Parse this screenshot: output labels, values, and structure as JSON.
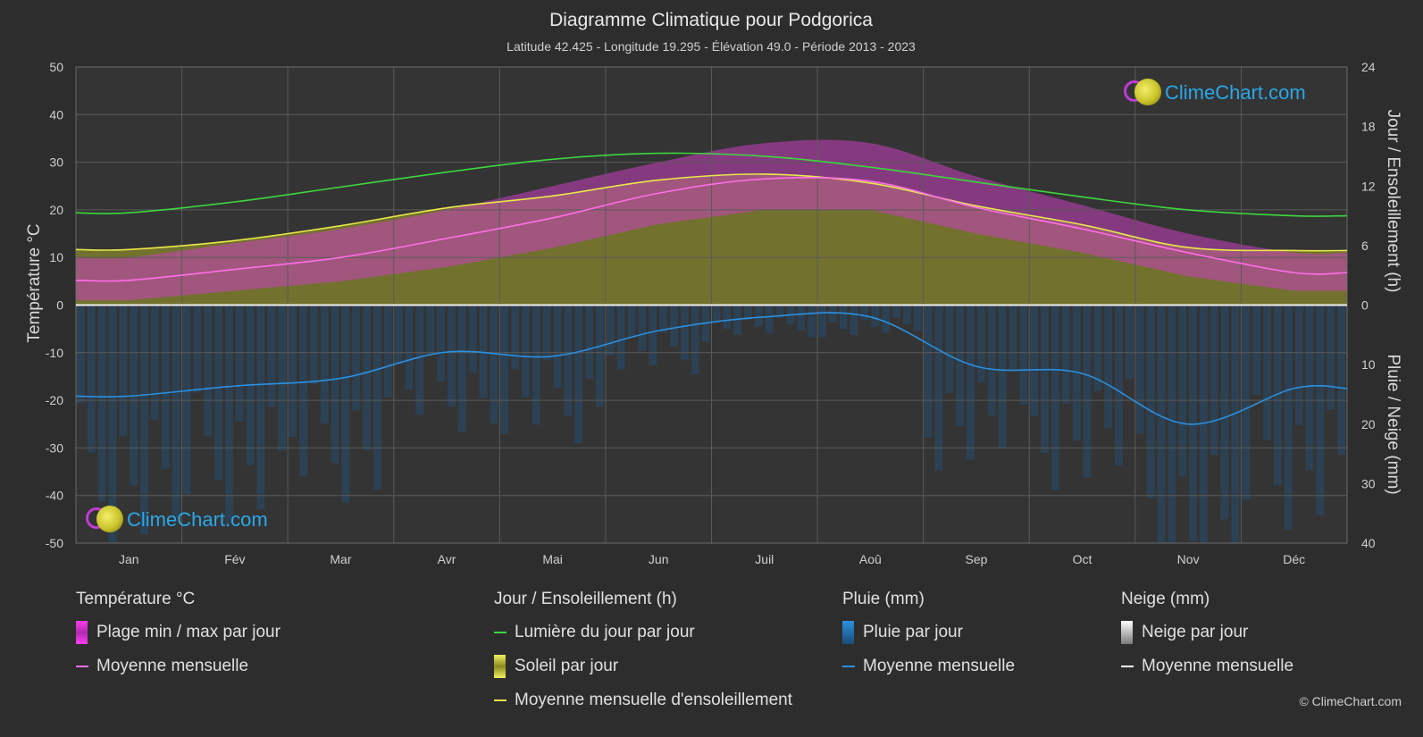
{
  "title": "Diagramme Climatique pour Podgorica",
  "subtitle": "Latitude 42.425 - Longitude 19.295 - Élévation 49.0 - Période 2013 - 2023",
  "brand": "ClimeChart.com",
  "copyright": "© ClimeChart.com",
  "colors": {
    "background": "#2d2d2d",
    "daylight": "#3ed63e",
    "sunshine_mean": "#e8e84a",
    "temp_mean": "#ff6ee8",
    "temp_range": "#d63fd0",
    "rain": "#2a90e0",
    "snow": "#ffffff",
    "brand": "#2aa7e8"
  },
  "chart_data": {
    "type": "line",
    "categories": [
      "Jan",
      "Fév",
      "Mar",
      "Avr",
      "Mai",
      "Jun",
      "Juil",
      "Aoû",
      "Sep",
      "Oct",
      "Nov",
      "Déc"
    ],
    "y_left": {
      "label": "Température °C",
      "range": [
        -50,
        50
      ],
      "ticks": [
        50,
        40,
        30,
        20,
        10,
        0,
        -10,
        -20,
        -30,
        -40,
        -50
      ]
    },
    "y_right_top": {
      "label": "Jour / Ensoleillement (h)",
      "range": [
        0,
        24
      ],
      "ticks": [
        24,
        18,
        12,
        6,
        0
      ]
    },
    "y_right_bottom": {
      "label": "Pluie / Neige (mm)",
      "range": [
        0,
        40
      ],
      "ticks": [
        0,
        10,
        20,
        30,
        40
      ]
    },
    "grid": true,
    "series": [
      {
        "name": "Lumière du jour par jour",
        "unit": "h",
        "values": [
          9.3,
          10.4,
          11.9,
          13.4,
          14.7,
          15.3,
          15.0,
          13.9,
          12.4,
          10.9,
          9.6,
          9.0
        ]
      },
      {
        "name": "Moyenne mensuelle d'ensoleillement",
        "unit": "h",
        "values": [
          5.6,
          6.5,
          8.0,
          9.8,
          11.0,
          12.6,
          13.2,
          12.3,
          10.0,
          8.1,
          5.8,
          5.5
        ]
      },
      {
        "name": "Moyenne mensuelle",
        "group": "Température °C",
        "unit": "°C",
        "values": [
          5.2,
          7.5,
          10.0,
          14.0,
          18.3,
          23.5,
          26.5,
          26.0,
          20.5,
          16.0,
          11.0,
          6.8
        ]
      },
      {
        "name": "Moyenne mensuelle",
        "group": "Pluie (mm)",
        "unit": "mm",
        "values": [
          15.3,
          13.6,
          12.3,
          7.9,
          8.6,
          4.3,
          2.0,
          2.0,
          10.3,
          11.5,
          20.0,
          14.0
        ]
      }
    ],
    "temp_range": {
      "min": [
        1,
        3,
        5,
        8,
        12,
        17,
        20,
        20,
        15,
        11,
        6,
        3
      ],
      "max": [
        10,
        13,
        16,
        20,
        25,
        30,
        34,
        34,
        27,
        21,
        15,
        11
      ]
    }
  },
  "legend": {
    "temperature": {
      "title": "Température °C",
      "items": [
        "Plage min / max par jour",
        "Moyenne mensuelle"
      ]
    },
    "sun": {
      "title": "Jour / Ensoleillement (h)",
      "items": [
        "Lumière du jour par jour",
        "Soleil par jour",
        "Moyenne mensuelle d'ensoleillement"
      ]
    },
    "rain": {
      "title": "Pluie (mm)",
      "items": [
        "Pluie par jour",
        "Moyenne mensuelle"
      ]
    },
    "snow": {
      "title": "Neige (mm)",
      "items": [
        "Neige par jour",
        "Moyenne mensuelle"
      ]
    }
  }
}
